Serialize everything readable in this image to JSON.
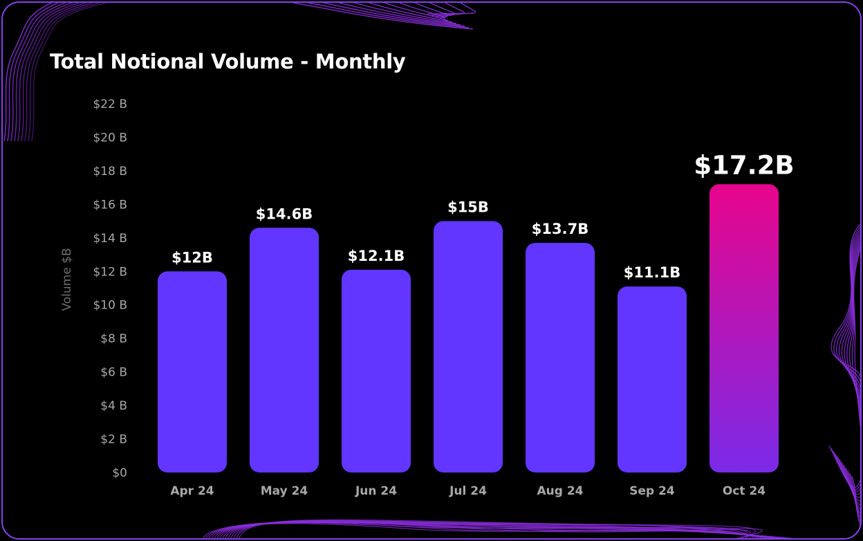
{
  "title": "Total Notional Volume - Monthly",
  "colors": {
    "background": "#000000",
    "border": "#8a3ff0",
    "bar": "#6236ff",
    "highlight_top": "#e8058c",
    "highlight_bottom": "#7a2ae8",
    "decoration": "#8c2ee0"
  },
  "chart_data": {
    "type": "bar",
    "title": "Total Notional Volume - Monthly",
    "xlabel": "",
    "ylabel": "Volume $B",
    "categories": [
      "Apr 24",
      "May 24",
      "Jun 24",
      "Jul 24",
      "Aug 24",
      "Sep 24",
      "Oct 24"
    ],
    "values": [
      12,
      14.6,
      12.1,
      15,
      13.7,
      11.1,
      17.2
    ],
    "data_labels": [
      "$12B",
      "$14.6B",
      "$12.1B",
      "$15B",
      "$13.7B",
      "$11.1B",
      "$17.2B"
    ],
    "highlight_index": 6,
    "ylim": [
      0,
      22
    ],
    "yticks": [
      0,
      2,
      4,
      6,
      8,
      10,
      12,
      14,
      16,
      18,
      20,
      22
    ],
    "ytick_labels": [
      "$0",
      "$2 B",
      "$4 B",
      "$6 B",
      "$8 B",
      "$10 B",
      "$12 B",
      "$14 B",
      "$16 B",
      "$18 B",
      "$20 B",
      "$22 B"
    ],
    "grid": false,
    "legend": "none"
  }
}
